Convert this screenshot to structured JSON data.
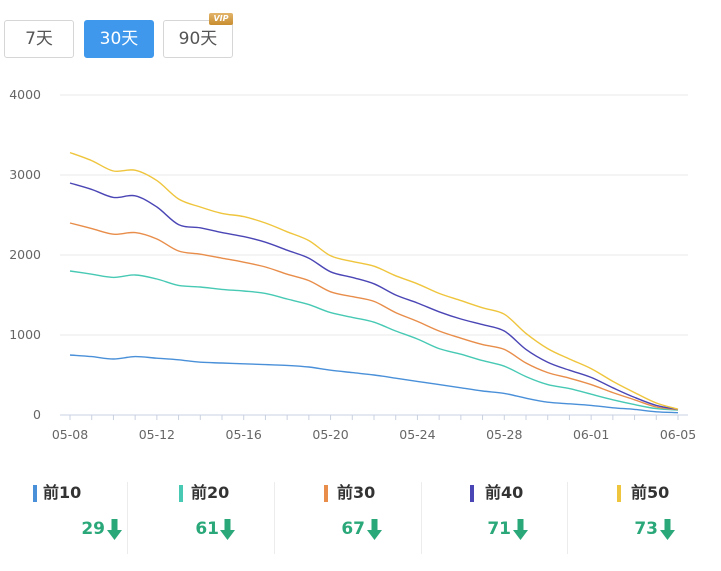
{
  "range_tabs": [
    {
      "label": "7天",
      "active": false
    },
    {
      "label": "30天",
      "active": true
    },
    {
      "label": "90天",
      "active": false,
      "badge": "VIP"
    }
  ],
  "colors": {
    "accent": "#3f98ec",
    "down": "#2aa87a",
    "grid": "#e9e9e9"
  },
  "chart_data": {
    "type": "line",
    "title": "",
    "xlabel": "",
    "ylabel": "",
    "ylim": [
      0,
      4000
    ],
    "yticks": [
      0,
      1000,
      2000,
      3000,
      4000
    ],
    "x": [
      "05-08",
      "05-09",
      "05-10",
      "05-11",
      "05-12",
      "05-13",
      "05-14",
      "05-15",
      "05-16",
      "05-17",
      "05-18",
      "05-19",
      "05-20",
      "05-21",
      "05-22",
      "05-23",
      "05-24",
      "05-25",
      "05-26",
      "05-27",
      "05-28",
      "05-29",
      "05-30",
      "05-31",
      "06-01",
      "06-02",
      "06-03",
      "06-04",
      "06-05"
    ],
    "xticks": [
      "05-08",
      "05-12",
      "05-16",
      "05-20",
      "05-24",
      "05-28",
      "06-01",
      "06-05"
    ],
    "grid": true,
    "legend": "bottom",
    "series": [
      {
        "name": "前10",
        "color": "#4a90d9",
        "values": [
          750,
          730,
          700,
          730,
          710,
          690,
          660,
          650,
          640,
          630,
          620,
          600,
          560,
          530,
          500,
          460,
          420,
          380,
          340,
          300,
          270,
          210,
          160,
          140,
          120,
          90,
          70,
          40,
          29
        ]
      },
      {
        "name": "前20",
        "color": "#47c9b4",
        "values": [
          1800,
          1760,
          1720,
          1750,
          1700,
          1620,
          1600,
          1570,
          1550,
          1520,
          1450,
          1380,
          1280,
          1220,
          1160,
          1050,
          950,
          830,
          760,
          680,
          610,
          480,
          380,
          330,
          260,
          190,
          130,
          80,
          61
        ]
      },
      {
        "name": "前30",
        "color": "#e88d4a",
        "values": [
          2400,
          2330,
          2260,
          2280,
          2200,
          2050,
          2010,
          1960,
          1910,
          1850,
          1760,
          1680,
          1540,
          1480,
          1420,
          1280,
          1170,
          1050,
          960,
          880,
          820,
          650,
          530,
          460,
          380,
          280,
          190,
          100,
          67
        ]
      },
      {
        "name": "前40",
        "color": "#4b46b5",
        "values": [
          2900,
          2820,
          2720,
          2740,
          2600,
          2380,
          2340,
          2280,
          2230,
          2160,
          2060,
          1960,
          1790,
          1720,
          1640,
          1500,
          1400,
          1290,
          1200,
          1130,
          1050,
          820,
          660,
          560,
          470,
          340,
          220,
          120,
          71
        ]
      },
      {
        "name": "前50",
        "color": "#efc53d",
        "values": [
          3280,
          3180,
          3050,
          3060,
          2930,
          2700,
          2600,
          2520,
          2480,
          2400,
          2290,
          2180,
          1990,
          1920,
          1860,
          1740,
          1640,
          1520,
          1430,
          1340,
          1260,
          1020,
          830,
          700,
          580,
          420,
          280,
          150,
          73
        ]
      }
    ]
  },
  "stats": [
    {
      "label": "前10",
      "value": "29",
      "color": "#4a90d9"
    },
    {
      "label": "前20",
      "value": "61",
      "color": "#47c9b4"
    },
    {
      "label": "前30",
      "value": "67",
      "color": "#e88d4a"
    },
    {
      "label": "前40",
      "value": "71",
      "color": "#4b46b5"
    },
    {
      "label": "前50",
      "value": "73",
      "color": "#efc53d"
    }
  ]
}
